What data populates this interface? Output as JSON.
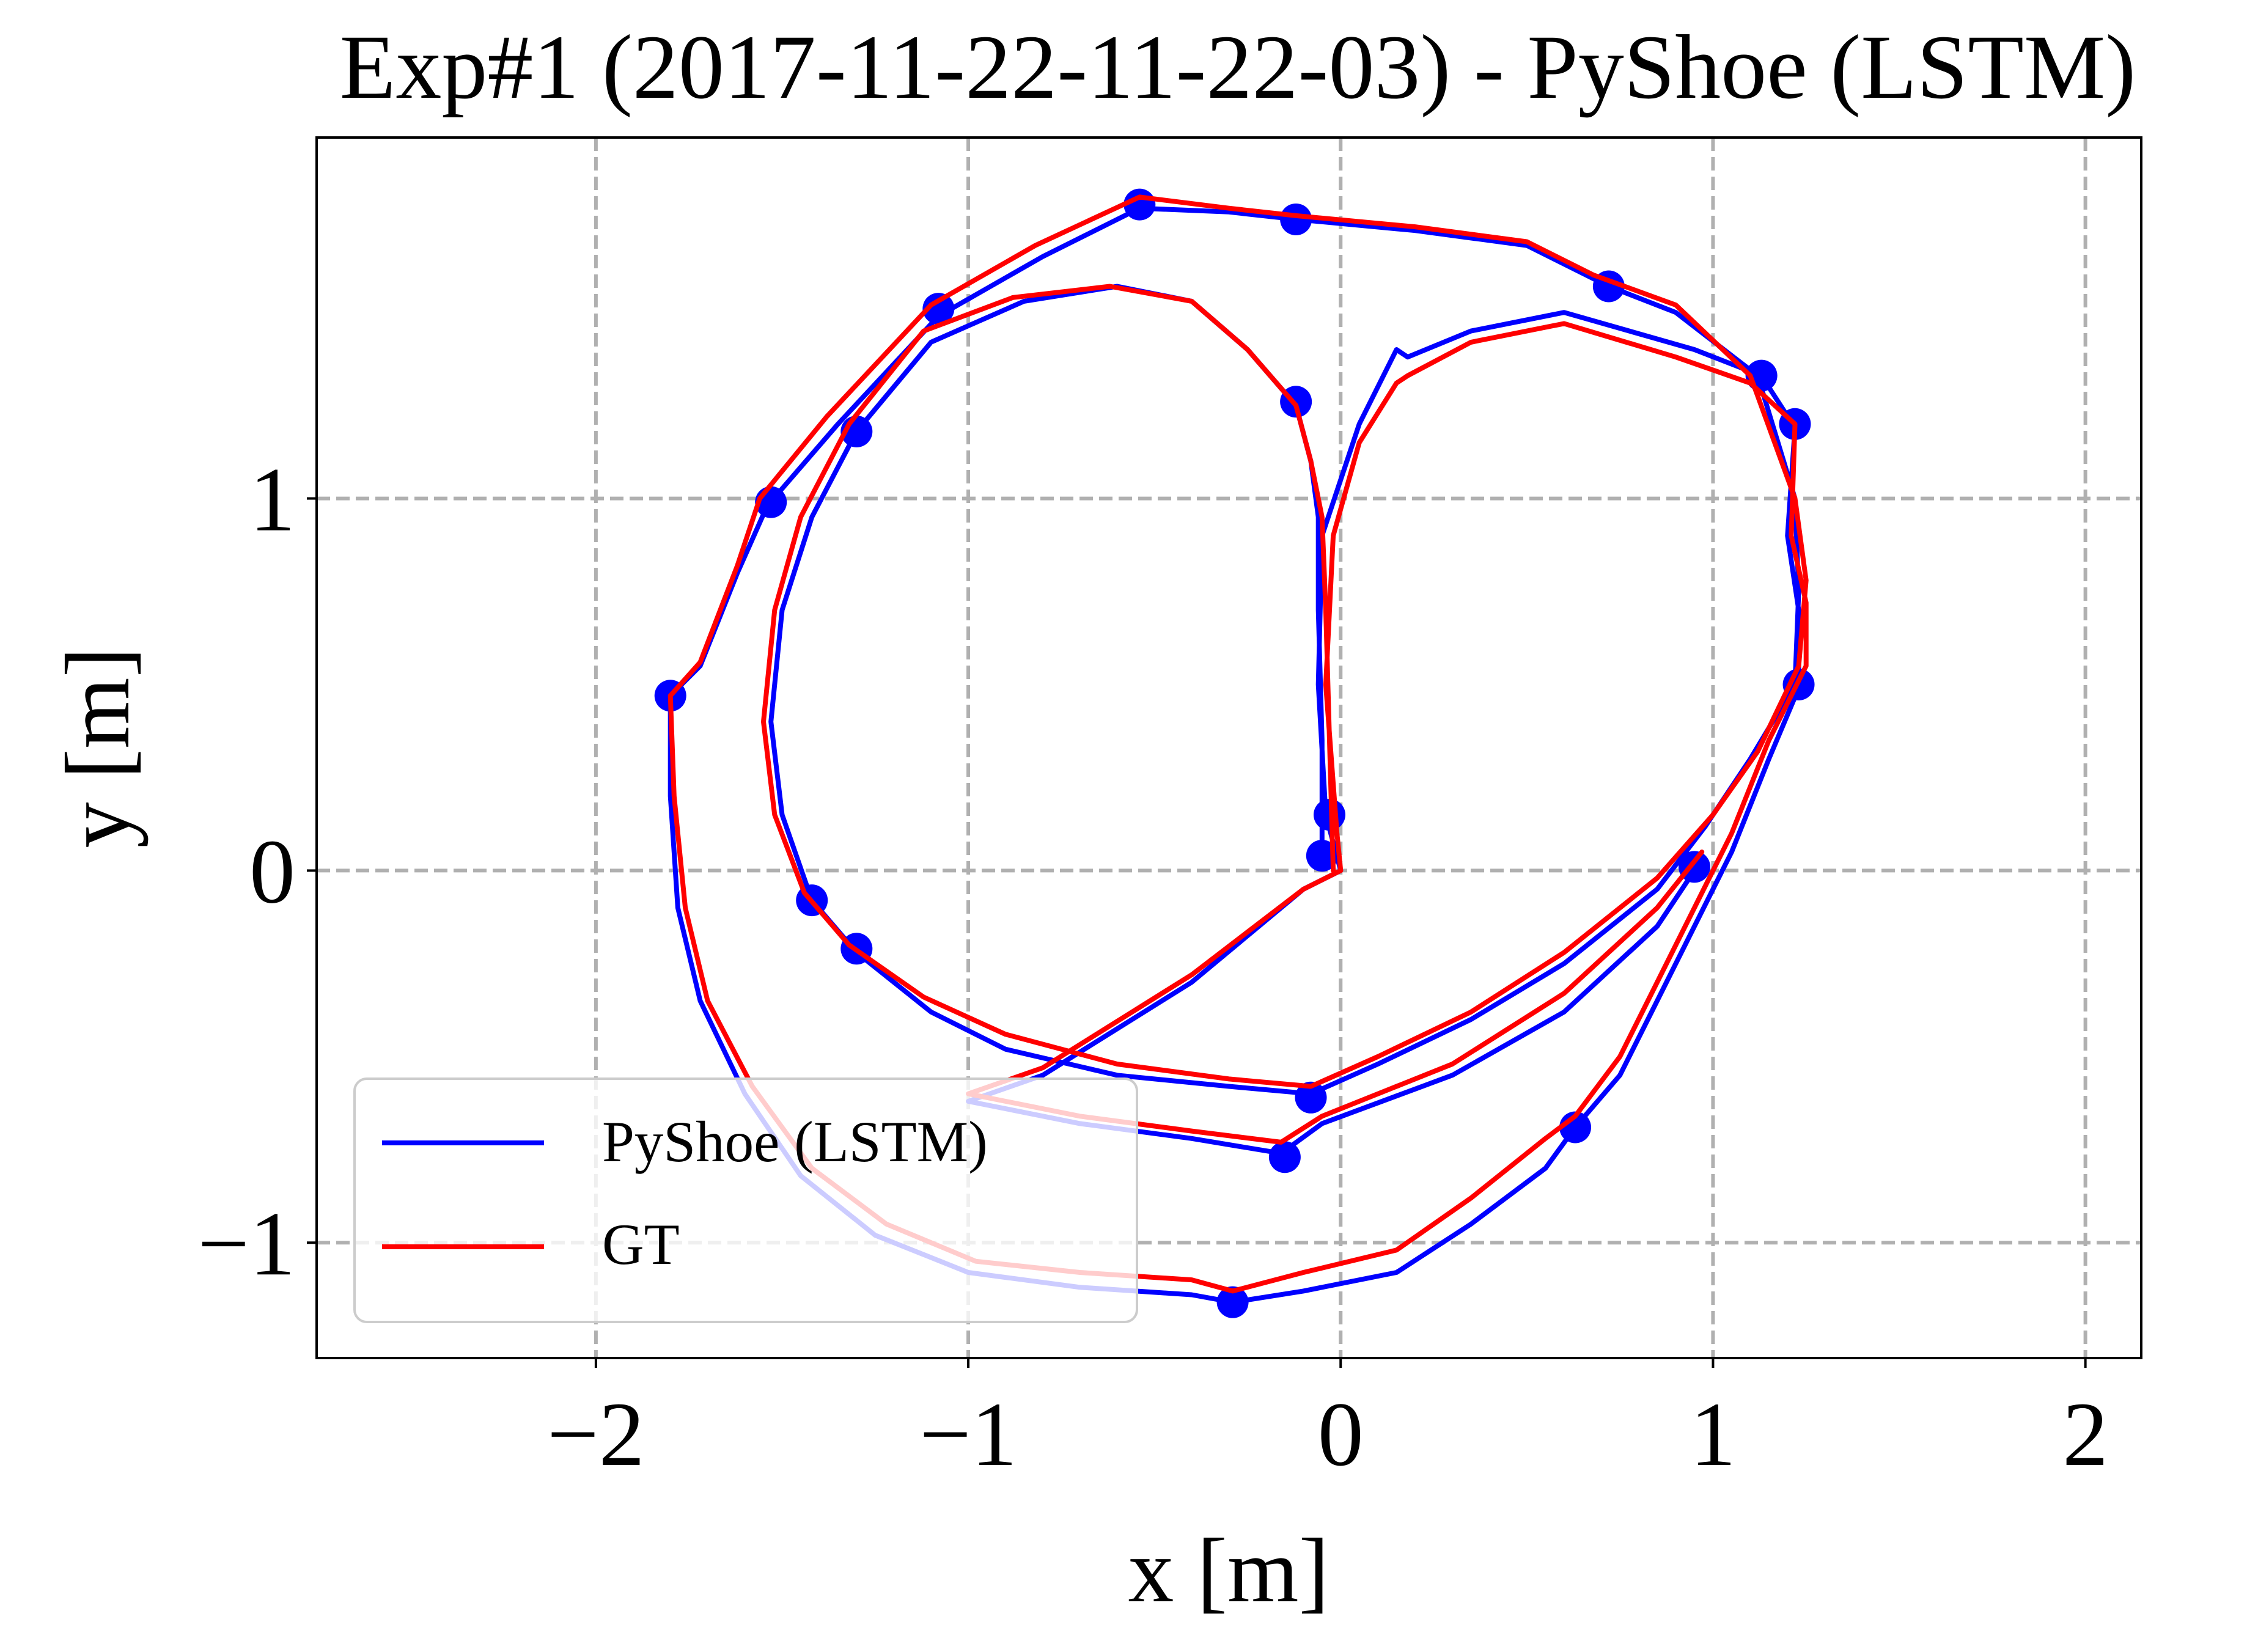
{
  "chart_data": {
    "type": "line",
    "title": "Exp#1 (2017-11-22-11-22-03) - PyShoe (LSTM)",
    "xlabel": "x [m]",
    "ylabel": "y [m]",
    "xlim": [
      -2.75,
      2.15
    ],
    "ylim": [
      -1.31,
      1.97
    ],
    "xticks": [
      -2,
      -1,
      0,
      1,
      2
    ],
    "xtick_labels": [
      "−2",
      "−1",
      "0",
      "1",
      "2"
    ],
    "yticks": [
      -1,
      0,
      1
    ],
    "ytick_labels": [
      "−1",
      "0",
      "1"
    ],
    "grid": true,
    "legend_position": "lower-left",
    "series": [
      {
        "name": "PyShoe (LSTM)",
        "color": "#0000ff",
        "points": [
          [
            -0.05,
            0.02
          ],
          [
            -0.05,
            0.35
          ],
          [
            -0.06,
            0.7
          ],
          [
            -0.06,
            0.95
          ],
          [
            -0.08,
            1.1
          ],
          [
            -0.12,
            1.25
          ],
          [
            -0.25,
            1.4
          ],
          [
            -0.4,
            1.53
          ],
          [
            -0.6,
            1.57
          ],
          [
            -0.85,
            1.53
          ],
          [
            -1.1,
            1.42
          ],
          [
            -1.3,
            1.18
          ],
          [
            -1.42,
            0.95
          ],
          [
            -1.5,
            0.7
          ],
          [
            -1.53,
            0.4
          ],
          [
            -1.5,
            0.15
          ],
          [
            -1.42,
            -0.08
          ],
          [
            -1.3,
            -0.22
          ],
          [
            -1.1,
            -0.38
          ],
          [
            -0.9,
            -0.48
          ],
          [
            -0.6,
            -0.55
          ],
          [
            -0.3,
            -0.58
          ],
          [
            -0.08,
            -0.6
          ],
          [
            0.1,
            -0.52
          ],
          [
            0.35,
            -0.4
          ],
          [
            0.6,
            -0.25
          ],
          [
            0.85,
            -0.05
          ],
          [
            0.98,
            0.12
          ],
          [
            1.1,
            0.3
          ],
          [
            1.22,
            0.5
          ],
          [
            1.23,
            0.75
          ],
          [
            1.22,
            1.0
          ],
          [
            1.12,
            1.33
          ],
          [
            0.9,
            1.5
          ],
          [
            0.72,
            1.57
          ],
          [
            0.5,
            1.68
          ],
          [
            0.2,
            1.72
          ],
          [
            -0.12,
            1.75
          ],
          [
            -0.3,
            1.77
          ],
          [
            -0.54,
            1.78
          ],
          [
            -0.8,
            1.65
          ],
          [
            -1.08,
            1.49
          ],
          [
            -1.35,
            1.2
          ],
          [
            -1.54,
            0.98
          ],
          [
            -1.62,
            0.8
          ],
          [
            -1.72,
            0.55
          ],
          [
            -1.8,
            0.47
          ],
          [
            -1.8,
            0.2
          ],
          [
            -1.78,
            -0.1
          ],
          [
            -1.72,
            -0.35
          ],
          [
            -1.6,
            -0.6
          ],
          [
            -1.45,
            -0.82
          ],
          [
            -1.25,
            -0.98
          ],
          [
            -1.0,
            -1.08
          ],
          [
            -0.7,
            -1.12
          ],
          [
            -0.4,
            -1.14
          ],
          [
            -0.29,
            -1.16
          ],
          [
            -0.1,
            -1.13
          ],
          [
            0.15,
            -1.08
          ],
          [
            0.35,
            -0.95
          ],
          [
            0.55,
            -0.8
          ],
          [
            0.63,
            -0.69
          ],
          [
            0.75,
            -0.55
          ],
          [
            0.85,
            -0.35
          ],
          [
            0.95,
            -0.15
          ],
          [
            1.05,
            0.05
          ],
          [
            1.15,
            0.3
          ],
          [
            1.23,
            0.49
          ],
          [
            1.23,
            0.7
          ],
          [
            1.2,
            0.9
          ],
          [
            1.22,
            1.19
          ],
          [
            1.13,
            1.33
          ],
          [
            0.95,
            1.4
          ],
          [
            0.6,
            1.5
          ],
          [
            0.35,
            1.45
          ],
          [
            0.18,
            1.38
          ],
          [
            0.15,
            1.4
          ],
          [
            0.05,
            1.2
          ],
          [
            -0.05,
            0.9
          ],
          [
            -0.06,
            0.5
          ],
          [
            -0.04,
            0.15
          ],
          [
            0.0,
            0.0
          ],
          [
            -0.1,
            -0.05
          ],
          [
            -0.4,
            -0.3
          ],
          [
            -0.8,
            -0.55
          ],
          [
            -1.0,
            -0.62
          ],
          [
            -0.7,
            -0.68
          ],
          [
            -0.4,
            -0.72
          ],
          [
            -0.16,
            -0.76
          ],
          [
            -0.05,
            -0.68
          ],
          [
            0.3,
            -0.55
          ],
          [
            0.6,
            -0.38
          ],
          [
            0.85,
            -0.15
          ],
          [
            0.95,
            0.0
          ]
        ],
        "markers": [
          [
            -0.05,
            0.04
          ],
          [
            -0.03,
            0.15
          ],
          [
            -0.12,
            1.26
          ],
          [
            -0.54,
            1.79
          ],
          [
            -0.12,
            1.75
          ],
          [
            -1.08,
            1.51
          ],
          [
            -1.3,
            1.18
          ],
          [
            -1.53,
            0.99
          ],
          [
            -1.8,
            0.47
          ],
          [
            -1.42,
            -0.08
          ],
          [
            -1.3,
            -0.21
          ],
          [
            -0.08,
            -0.61
          ],
          [
            -0.15,
            -0.77
          ],
          [
            -0.29,
            -1.16
          ],
          [
            0.63,
            -0.69
          ],
          [
            0.95,
            0.01
          ],
          [
            0.72,
            1.57
          ],
          [
            1.13,
            1.33
          ],
          [
            1.22,
            1.2
          ],
          [
            1.23,
            0.5
          ]
        ]
      },
      {
        "name": "GT",
        "color": "#ff0000",
        "points": [
          [
            -0.02,
            0.0
          ],
          [
            -0.03,
            0.35
          ],
          [
            -0.04,
            0.7
          ],
          [
            -0.05,
            0.95
          ],
          [
            -0.08,
            1.1
          ],
          [
            -0.12,
            1.25
          ],
          [
            -0.25,
            1.4
          ],
          [
            -0.4,
            1.53
          ],
          [
            -0.62,
            1.57
          ],
          [
            -0.88,
            1.54
          ],
          [
            -1.12,
            1.45
          ],
          [
            -1.32,
            1.2
          ],
          [
            -1.45,
            0.95
          ],
          [
            -1.52,
            0.7
          ],
          [
            -1.55,
            0.4
          ],
          [
            -1.52,
            0.15
          ],
          [
            -1.44,
            -0.06
          ],
          [
            -1.32,
            -0.2
          ],
          [
            -1.12,
            -0.34
          ],
          [
            -0.9,
            -0.44
          ],
          [
            -0.6,
            -0.52
          ],
          [
            -0.3,
            -0.56
          ],
          [
            -0.08,
            -0.58
          ],
          [
            0.1,
            -0.5
          ],
          [
            0.35,
            -0.38
          ],
          [
            0.6,
            -0.22
          ],
          [
            0.85,
            -0.02
          ],
          [
            1.0,
            0.15
          ],
          [
            1.12,
            0.32
          ],
          [
            1.23,
            0.55
          ],
          [
            1.25,
            0.78
          ],
          [
            1.22,
            1.0
          ],
          [
            1.1,
            1.33
          ],
          [
            0.9,
            1.52
          ],
          [
            0.68,
            1.6
          ],
          [
            0.5,
            1.69
          ],
          [
            0.2,
            1.73
          ],
          [
            -0.12,
            1.76
          ],
          [
            -0.3,
            1.78
          ],
          [
            -0.54,
            1.81
          ],
          [
            -0.82,
            1.68
          ],
          [
            -1.1,
            1.52
          ],
          [
            -1.38,
            1.22
          ],
          [
            -1.56,
            1.0
          ],
          [
            -1.62,
            0.82
          ],
          [
            -1.72,
            0.56
          ],
          [
            -1.8,
            0.47
          ],
          [
            -1.79,
            0.2
          ],
          [
            -1.76,
            -0.1
          ],
          [
            -1.7,
            -0.35
          ],
          [
            -1.58,
            -0.58
          ],
          [
            -1.42,
            -0.8
          ],
          [
            -1.22,
            -0.95
          ],
          [
            -0.98,
            -1.05
          ],
          [
            -0.7,
            -1.08
          ],
          [
            -0.4,
            -1.1
          ],
          [
            -0.29,
            -1.13
          ],
          [
            -0.1,
            -1.08
          ],
          [
            0.15,
            -1.02
          ],
          [
            0.35,
            -0.88
          ],
          [
            0.55,
            -0.72
          ],
          [
            0.63,
            -0.66
          ],
          [
            0.75,
            -0.5
          ],
          [
            0.85,
            -0.3
          ],
          [
            0.95,
            -0.1
          ],
          [
            1.05,
            0.1
          ],
          [
            1.15,
            0.35
          ],
          [
            1.25,
            0.55
          ],
          [
            1.25,
            0.72
          ],
          [
            1.21,
            0.9
          ],
          [
            1.22,
            1.2
          ],
          [
            1.1,
            1.31
          ],
          [
            0.9,
            1.38
          ],
          [
            0.6,
            1.47
          ],
          [
            0.35,
            1.42
          ],
          [
            0.18,
            1.33
          ],
          [
            0.15,
            1.31
          ],
          [
            0.05,
            1.15
          ],
          [
            -0.02,
            0.9
          ],
          [
            -0.04,
            0.5
          ],
          [
            -0.01,
            0.1
          ],
          [
            0.0,
            0.0
          ],
          [
            -0.1,
            -0.05
          ],
          [
            -0.4,
            -0.28
          ],
          [
            -0.8,
            -0.53
          ],
          [
            -1.0,
            -0.6
          ],
          [
            -0.7,
            -0.66
          ],
          [
            -0.4,
            -0.7
          ],
          [
            -0.16,
            -0.73
          ],
          [
            -0.05,
            -0.66
          ],
          [
            0.3,
            -0.52
          ],
          [
            0.6,
            -0.33
          ],
          [
            0.85,
            -0.1
          ],
          [
            0.97,
            0.05
          ]
        ]
      }
    ]
  }
}
